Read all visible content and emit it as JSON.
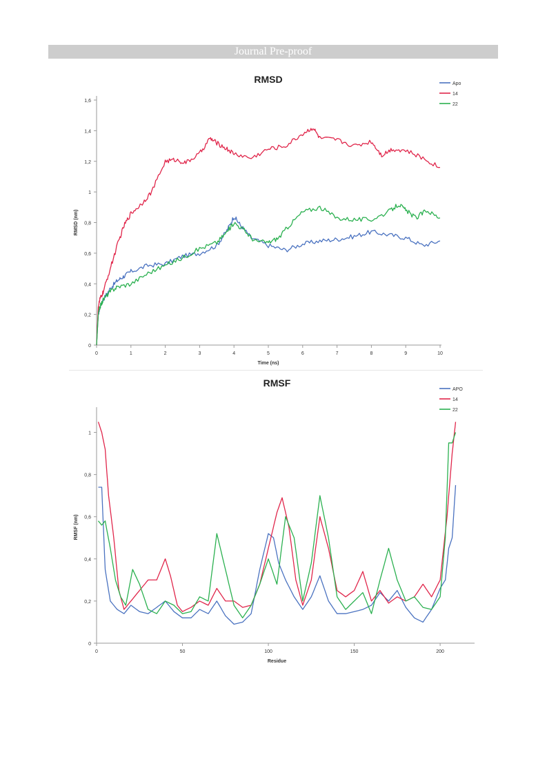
{
  "header": {
    "banner": "Journal Pre-proof"
  },
  "colors": {
    "apo": "#4a72c0",
    "c14": "#e0254a",
    "c22": "#2ab04f"
  },
  "chart_data": [
    {
      "type": "line",
      "title": "RMSD",
      "xlabel": "Time (ns)",
      "ylabel": "RMSD (nm)",
      "xlim": [
        0,
        10
      ],
      "ylim": [
        0,
        1.6
      ],
      "x_ticks": [
        "0",
        "1",
        "2",
        "3",
        "4",
        "5",
        "6",
        "7",
        "8",
        "9",
        "10"
      ],
      "y_ticks": [
        "0",
        "0,2",
        "0,4",
        "0,6",
        "0,8",
        "1",
        "1,2",
        "1,4",
        "1,6"
      ],
      "grid": false,
      "legend": "top-right",
      "series": [
        {
          "name": "Apo",
          "color": "#4a72c0",
          "x": [
            0,
            0.05,
            0.1,
            0.2,
            0.4,
            0.6,
            0.8,
            1,
            1.5,
            2,
            2.5,
            3,
            3.5,
            3.8,
            4,
            4.2,
            4.5,
            5,
            5.5,
            6,
            6.5,
            7,
            7.5,
            8,
            8.5,
            9,
            9.5,
            10
          ],
          "y": [
            0,
            0.2,
            0.25,
            0.3,
            0.37,
            0.42,
            0.45,
            0.48,
            0.52,
            0.53,
            0.58,
            0.6,
            0.65,
            0.75,
            0.84,
            0.78,
            0.7,
            0.65,
            0.62,
            0.66,
            0.68,
            0.69,
            0.71,
            0.74,
            0.72,
            0.7,
            0.65,
            0.68
          ]
        },
        {
          "name": "14",
          "color": "#e0254a",
          "x": [
            0,
            0.05,
            0.1,
            0.2,
            0.4,
            0.6,
            0.8,
            1,
            1.3,
            1.6,
            2,
            2.3,
            2.6,
            3,
            3.3,
            3.5,
            3.8,
            4,
            4.5,
            5,
            5.5,
            6,
            6.3,
            6.5,
            7,
            7.5,
            8,
            8.3,
            8.6,
            9,
            9.5,
            10
          ],
          "y": [
            0,
            0.25,
            0.3,
            0.35,
            0.5,
            0.65,
            0.78,
            0.86,
            0.92,
            1.0,
            1.2,
            1.21,
            1.19,
            1.25,
            1.35,
            1.32,
            1.28,
            1.25,
            1.22,
            1.28,
            1.3,
            1.38,
            1.42,
            1.35,
            1.34,
            1.3,
            1.33,
            1.24,
            1.28,
            1.27,
            1.22,
            1.16
          ]
        },
        {
          "name": "22",
          "color": "#2ab04f",
          "x": [
            0,
            0.05,
            0.1,
            0.2,
            0.4,
            0.6,
            1,
            1.5,
            2,
            2.5,
            3,
            3.5,
            3.8,
            4,
            4.3,
            4.6,
            5,
            5.3,
            5.6,
            6,
            6.5,
            7,
            7.5,
            8,
            8.5,
            8.8,
            9,
            9.3,
            9.6,
            10
          ],
          "y": [
            0,
            0.2,
            0.25,
            0.3,
            0.35,
            0.38,
            0.4,
            0.47,
            0.52,
            0.57,
            0.63,
            0.67,
            0.74,
            0.8,
            0.75,
            0.68,
            0.67,
            0.7,
            0.78,
            0.87,
            0.9,
            0.83,
            0.82,
            0.82,
            0.87,
            0.92,
            0.88,
            0.83,
            0.88,
            0.83
          ]
        }
      ]
    },
    {
      "type": "line",
      "title": "RMSF",
      "xlabel": "Residue",
      "ylabel": "RMSF (nm)",
      "xlim": [
        0,
        210
      ],
      "ylim": [
        0,
        1.1
      ],
      "x_ticks": [
        "0",
        "50",
        "100",
        "150",
        "200"
      ],
      "y_ticks": [
        "0",
        "0,2",
        "0,4",
        "0,6",
        "0,8",
        "1"
      ],
      "grid": false,
      "legend": "top-right",
      "series": [
        {
          "name": "APO",
          "color": "#4a72c0",
          "x": [
            1,
            3,
            5,
            8,
            12,
            16,
            20,
            25,
            30,
            35,
            40,
            45,
            50,
            55,
            60,
            65,
            70,
            75,
            80,
            85,
            90,
            95,
            100,
            103,
            106,
            110,
            115,
            120,
            125,
            130,
            135,
            140,
            145,
            150,
            155,
            160,
            165,
            170,
            175,
            180,
            185,
            190,
            195,
            200,
            203,
            205,
            207,
            209
          ],
          "y": [
            0.74,
            0.74,
            0.35,
            0.2,
            0.16,
            0.14,
            0.18,
            0.15,
            0.14,
            0.17,
            0.2,
            0.15,
            0.12,
            0.12,
            0.16,
            0.14,
            0.2,
            0.13,
            0.09,
            0.1,
            0.14,
            0.35,
            0.52,
            0.5,
            0.38,
            0.3,
            0.22,
            0.16,
            0.22,
            0.32,
            0.2,
            0.14,
            0.14,
            0.15,
            0.16,
            0.18,
            0.24,
            0.2,
            0.25,
            0.17,
            0.12,
            0.1,
            0.16,
            0.26,
            0.3,
            0.45,
            0.5,
            0.75
          ]
        },
        {
          "name": "14",
          "color": "#e0254a",
          "x": [
            1,
            3,
            5,
            7,
            10,
            13,
            16,
            20,
            25,
            30,
            35,
            40,
            43,
            47,
            50,
            55,
            60,
            65,
            70,
            75,
            80,
            85,
            90,
            95,
            100,
            105,
            108,
            112,
            116,
            120,
            125,
            130,
            135,
            140,
            145,
            150,
            155,
            160,
            165,
            170,
            175,
            180,
            185,
            190,
            195,
            200,
            204,
            207,
            209
          ],
          "y": [
            1.05,
            1.0,
            0.92,
            0.7,
            0.5,
            0.25,
            0.16,
            0.2,
            0.25,
            0.3,
            0.3,
            0.4,
            0.32,
            0.18,
            0.15,
            0.17,
            0.2,
            0.18,
            0.26,
            0.2,
            0.2,
            0.17,
            0.18,
            0.28,
            0.45,
            0.62,
            0.69,
            0.55,
            0.3,
            0.18,
            0.3,
            0.6,
            0.45,
            0.25,
            0.22,
            0.25,
            0.34,
            0.2,
            0.25,
            0.19,
            0.22,
            0.2,
            0.22,
            0.28,
            0.22,
            0.3,
            0.6,
            0.9,
            1.05
          ]
        },
        {
          "name": "22",
          "color": "#2ab04f",
          "x": [
            1,
            3,
            5,
            8,
            11,
            14,
            17,
            21,
            25,
            30,
            35,
            40,
            45,
            50,
            55,
            60,
            65,
            70,
            75,
            80,
            85,
            90,
            95,
            100,
            105,
            110,
            115,
            120,
            125,
            130,
            135,
            140,
            145,
            150,
            155,
            160,
            165,
            170,
            175,
            180,
            185,
            190,
            195,
            200,
            203,
            205,
            207,
            209
          ],
          "y": [
            0.58,
            0.56,
            0.58,
            0.45,
            0.3,
            0.22,
            0.18,
            0.35,
            0.28,
            0.16,
            0.14,
            0.2,
            0.18,
            0.14,
            0.15,
            0.22,
            0.2,
            0.52,
            0.35,
            0.18,
            0.12,
            0.18,
            0.28,
            0.4,
            0.28,
            0.6,
            0.5,
            0.2,
            0.38,
            0.7,
            0.5,
            0.22,
            0.16,
            0.2,
            0.24,
            0.14,
            0.3,
            0.45,
            0.3,
            0.2,
            0.22,
            0.17,
            0.16,
            0.22,
            0.5,
            0.95,
            0.95,
            1.0
          ]
        }
      ]
    }
  ]
}
